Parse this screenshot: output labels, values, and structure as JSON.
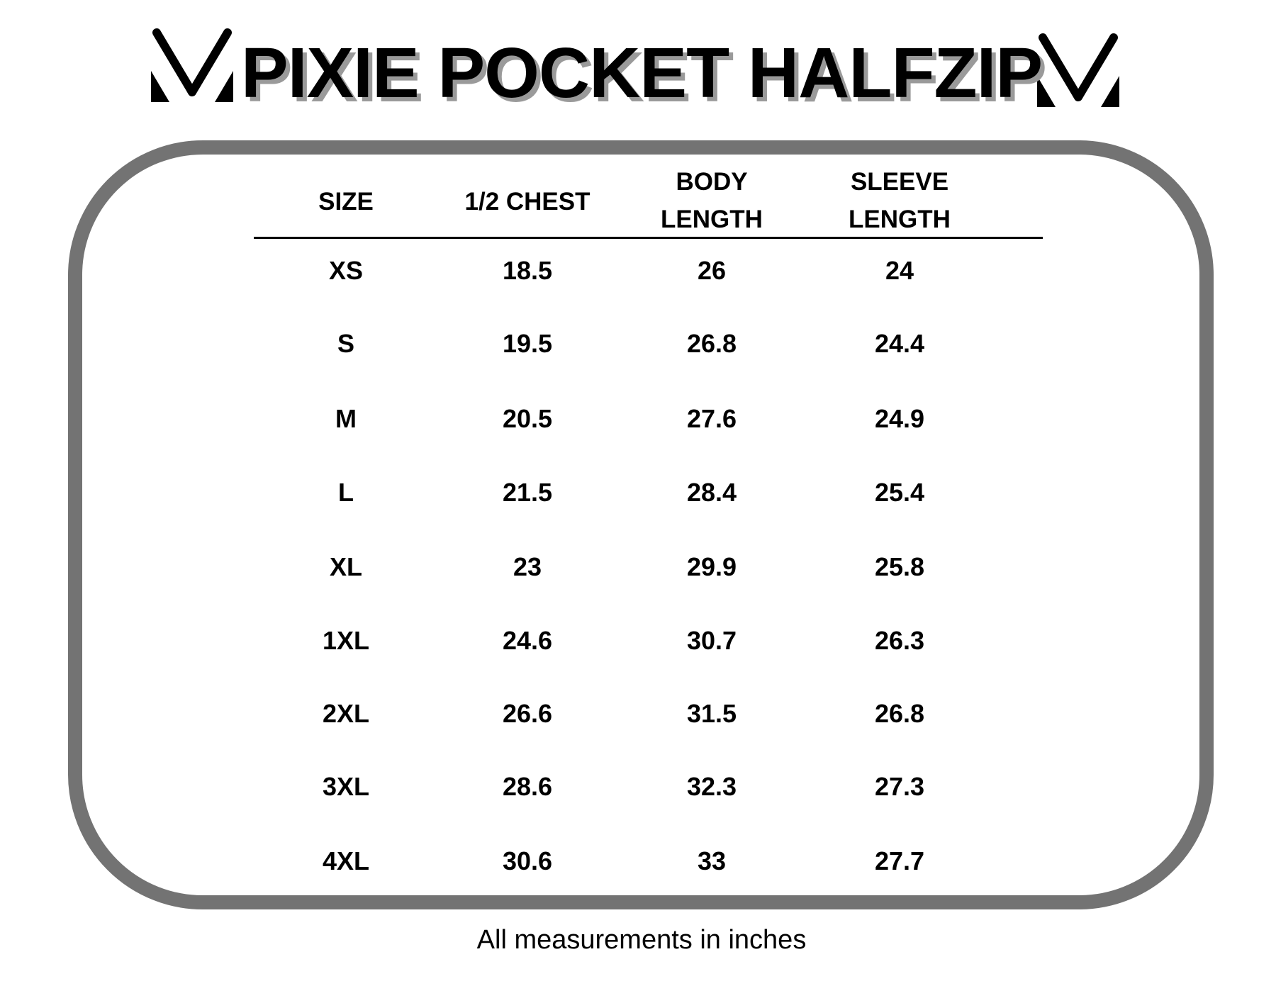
{
  "title": "PIXIE POCKET HALFZIP",
  "logo_icon": "v-brand-logo",
  "frame_color": "#737373",
  "table": {
    "headers": [
      "SIZE",
      "1/2 CHEST",
      "BODY\nLENGTH",
      "SLEEVE\nLENGTH"
    ],
    "header_lines": [
      [
        "SIZE"
      ],
      [
        "1/2 CHEST"
      ],
      [
        "BODY",
        "LENGTH"
      ],
      [
        "SLEEVE",
        "LENGTH"
      ]
    ],
    "rows": [
      [
        "XS",
        "18.5",
        "26",
        "24"
      ],
      [
        "S",
        "19.5",
        "26.8",
        "24.4"
      ],
      [
        "M",
        "20.5",
        "27.6",
        "24.9"
      ],
      [
        "L",
        "21.5",
        "28.4",
        "25.4"
      ],
      [
        "XL",
        "23",
        "29.9",
        "25.8"
      ],
      [
        "1XL",
        "24.6",
        "30.7",
        "26.3"
      ],
      [
        "2XL",
        "26.6",
        "31.5",
        "26.8"
      ],
      [
        "3XL",
        "28.6",
        "32.3",
        "27.3"
      ],
      [
        "4XL",
        "30.6",
        "33",
        "27.7"
      ]
    ]
  },
  "footer": "All measurements in inches"
}
